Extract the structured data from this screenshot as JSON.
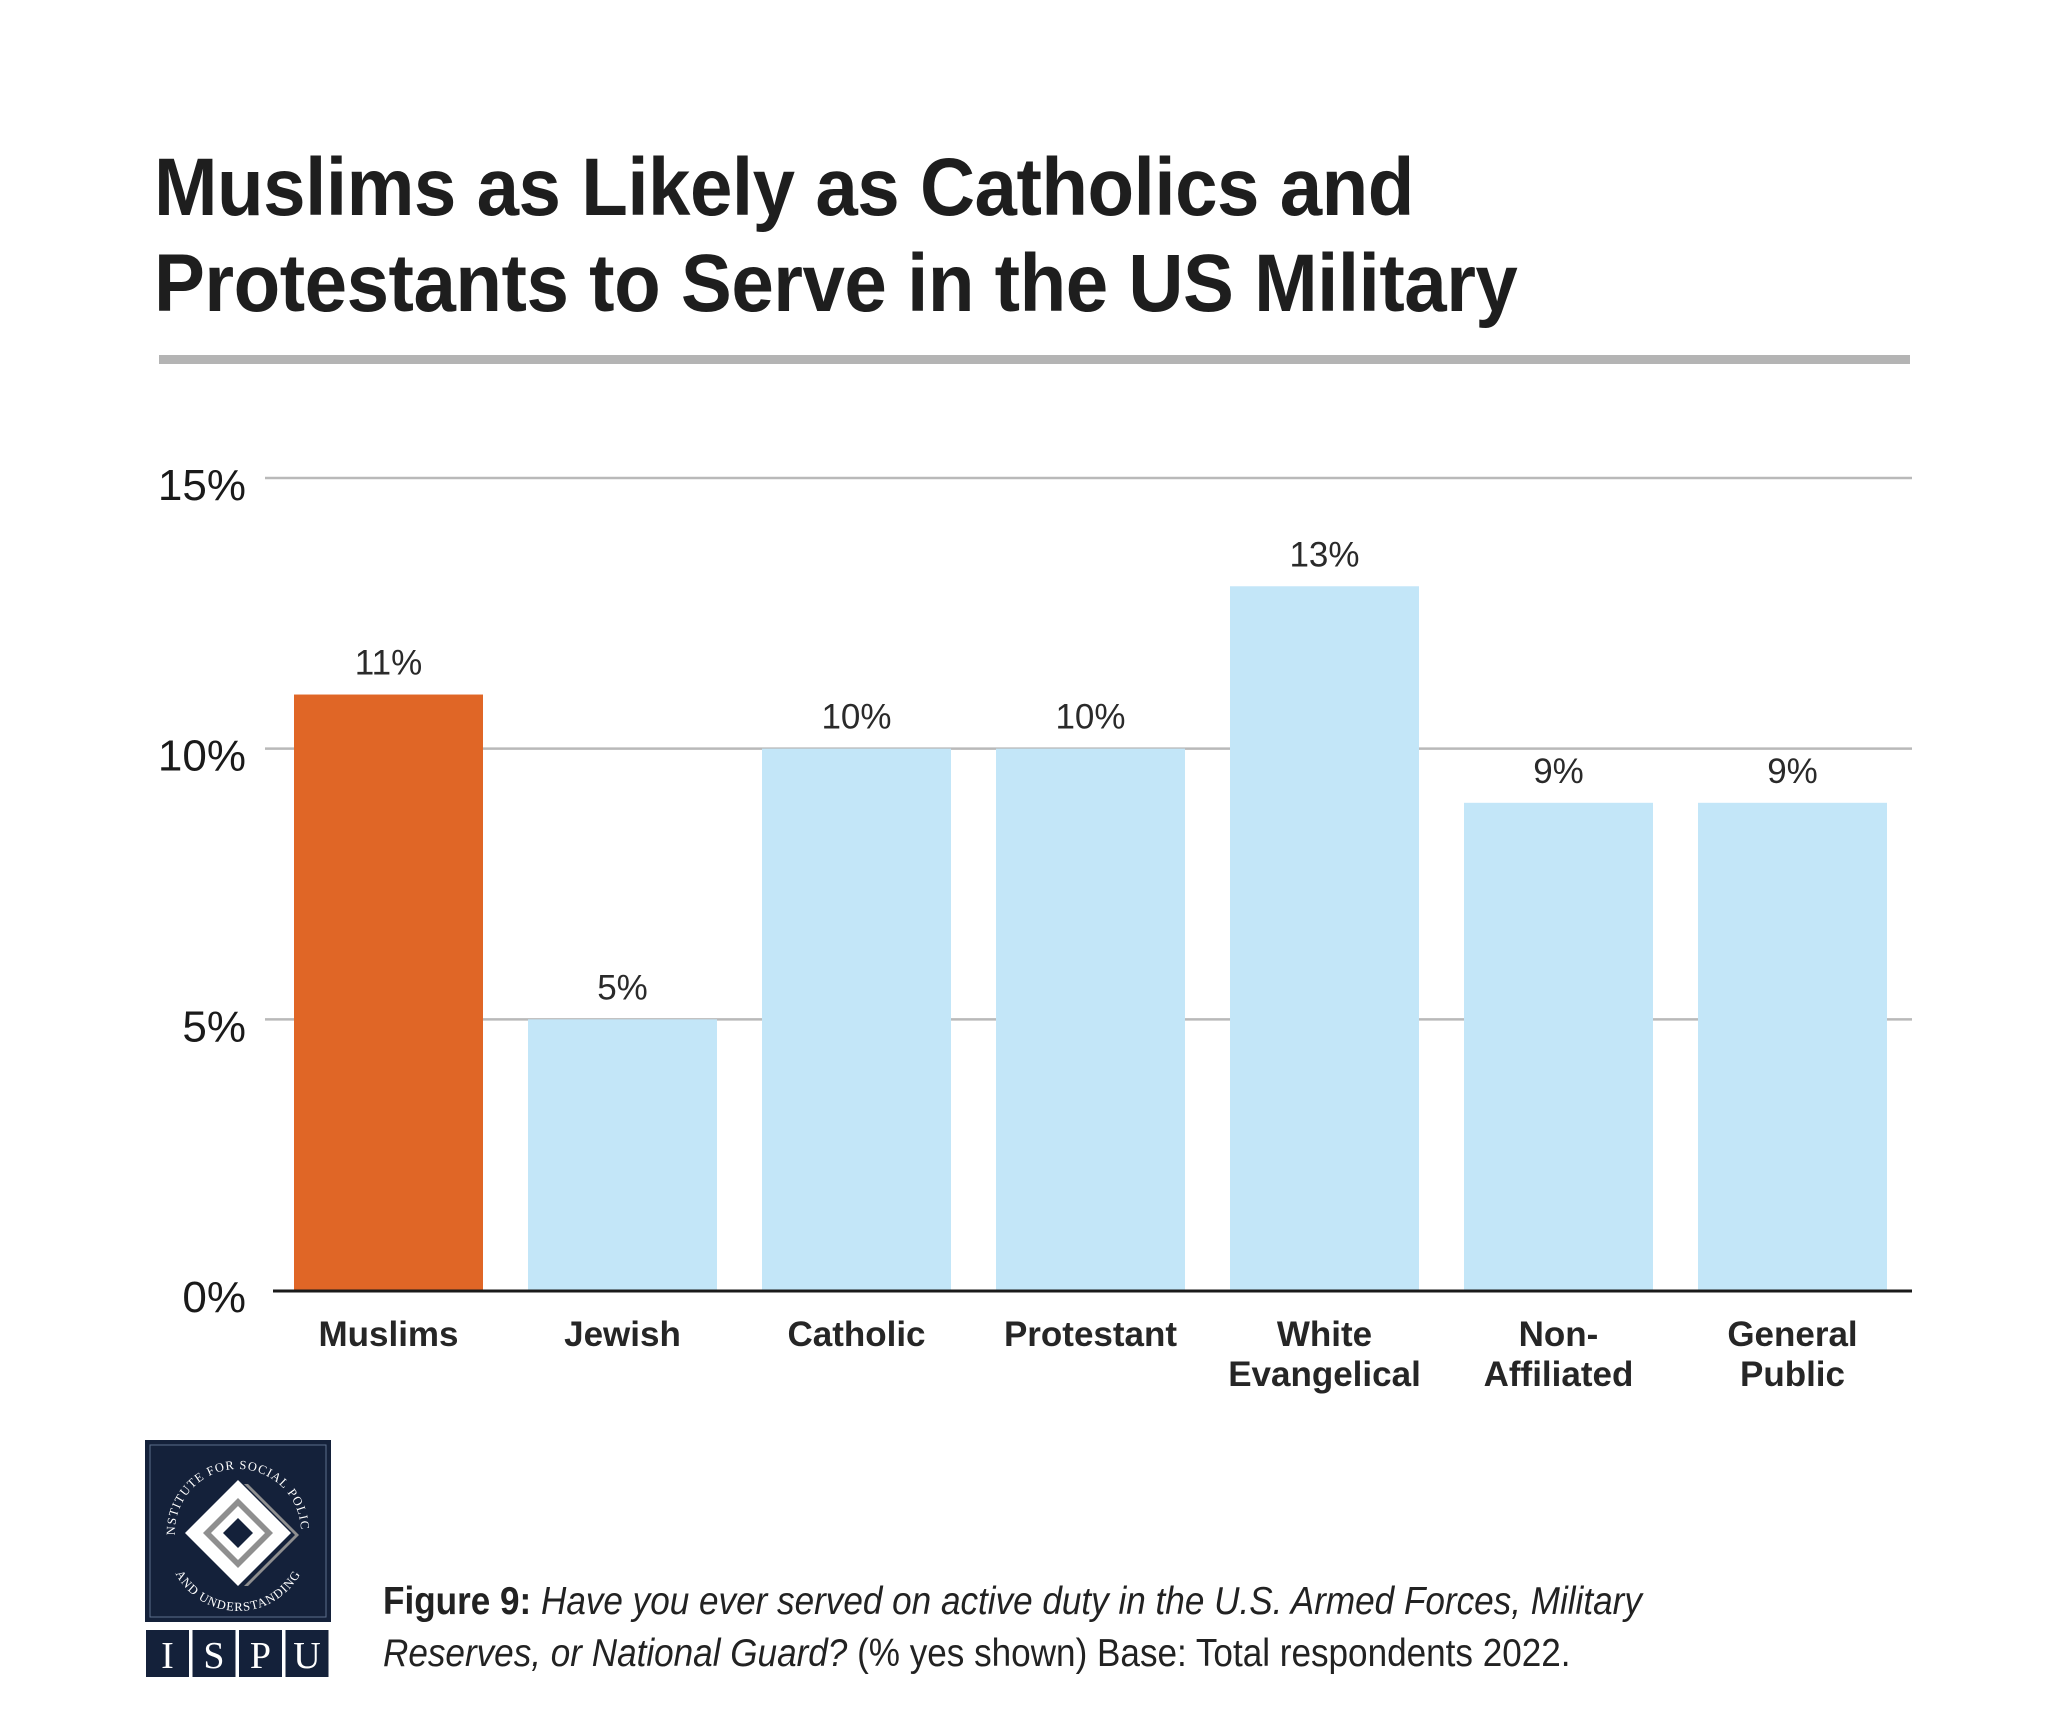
{
  "title": {
    "line1": "Muslims as Likely as Catholics and",
    "line2": "Protestants to Serve in the US Military"
  },
  "chart_data": {
    "type": "bar",
    "title": "Muslims as Likely as Catholics and Protestants to Serve in the US Military",
    "xlabel": "",
    "ylabel": "",
    "ylim": [
      0,
      15
    ],
    "yticks": [
      0,
      5,
      10,
      15
    ],
    "ytick_labels": [
      "0%",
      "5%",
      "10%",
      "15%"
    ],
    "grid": true,
    "categories": [
      [
        "Muslims"
      ],
      [
        "Jewish"
      ],
      [
        "Catholic"
      ],
      [
        "Protestant"
      ],
      [
        "White",
        "Evangelical"
      ],
      [
        "Non-",
        "Affiliated"
      ],
      [
        "General",
        "Public"
      ]
    ],
    "values": [
      11,
      5,
      10,
      10,
      13,
      9,
      9
    ],
    "data_labels": [
      "11%",
      "5%",
      "10%",
      "10%",
      "13%",
      "9%",
      "9%"
    ],
    "highlight_index": 0,
    "colors": {
      "highlight": "#e06626",
      "default": "#c3e6f8",
      "grid": "#b9b9b9",
      "axis": "#1a1a1a"
    }
  },
  "caption": {
    "figure_label": "Figure 9:",
    "question": "Have you ever served on active duty in the U.S. Armed Forces, Military Reserves, or National Guard?",
    "note": "(% yes shown) Base: Total respondents 2022."
  },
  "logo": {
    "ring_text": "INSTITUTE FOR SOCIAL POLICY AND UNDERSTANDING",
    "letters": [
      "I",
      "S",
      "P",
      "U"
    ],
    "colors": {
      "navy": "#14213a",
      "gray": "#8f8f8f",
      "white": "#ffffff"
    }
  }
}
